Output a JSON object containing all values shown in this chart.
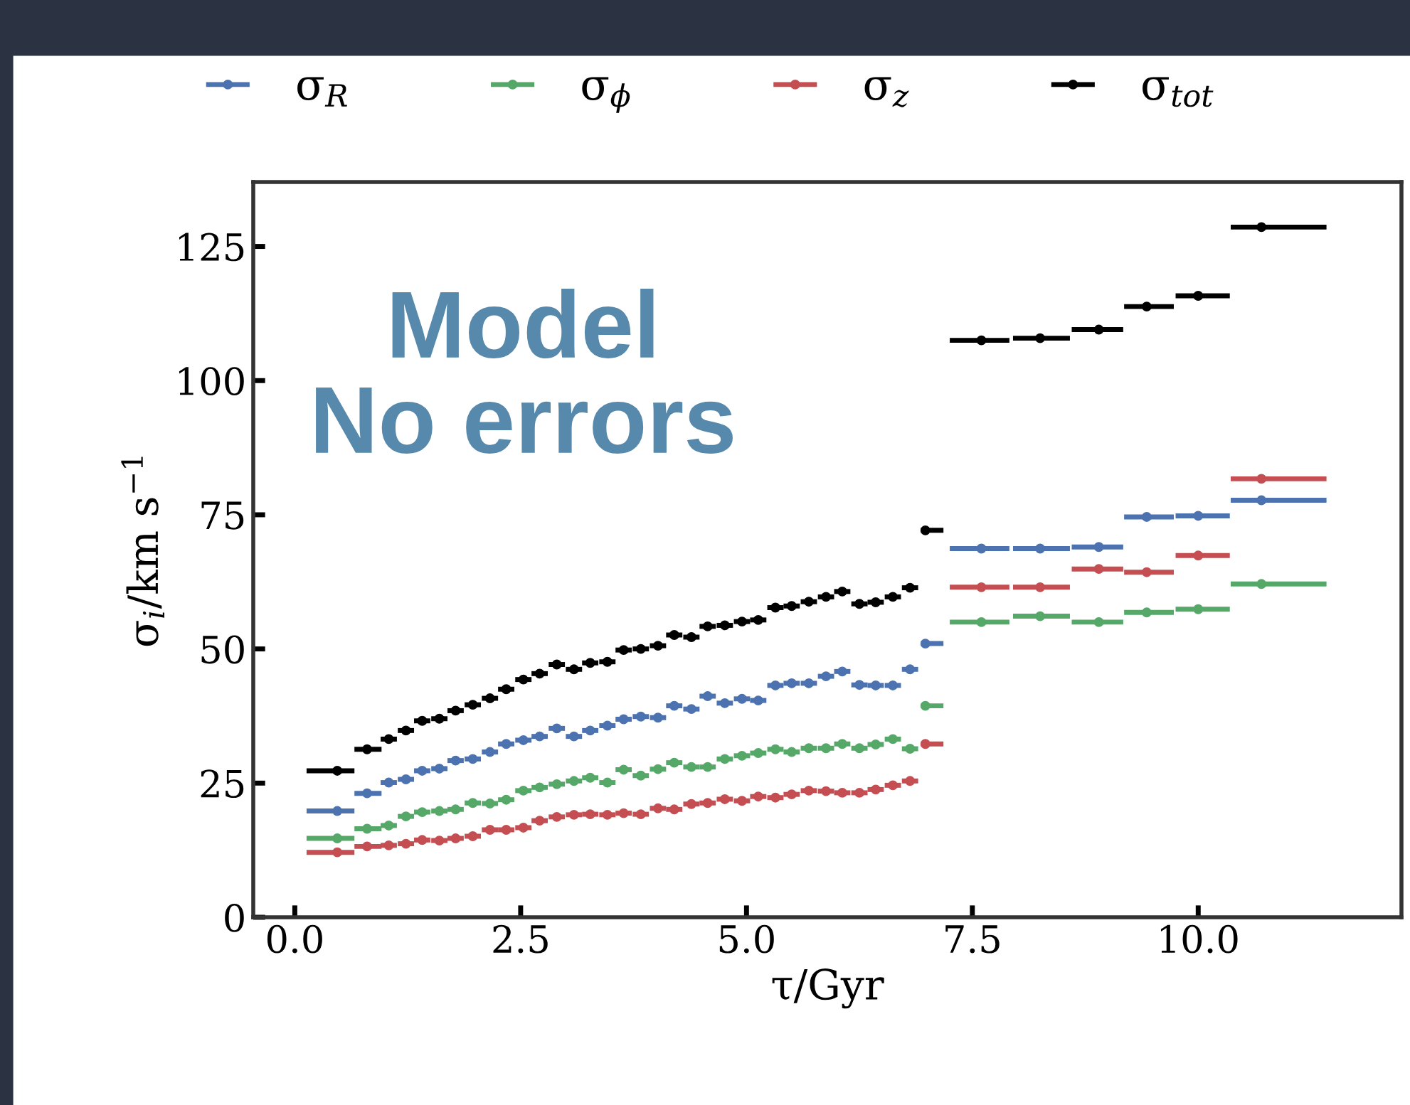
{
  "chart_data": {
    "type": "scatter",
    "xlabel": "τ/Gyr",
    "ylabel": "σ$_{i}$/km s$^{−1}$",
    "x": [
      0.47,
      0.8,
      1.04,
      1.23,
      1.41,
      1.6,
      1.78,
      1.97,
      2.16,
      2.34,
      2.53,
      2.71,
      2.9,
      3.09,
      3.27,
      3.46,
      3.64,
      3.83,
      4.02,
      4.2,
      4.39,
      4.57,
      4.76,
      4.95,
      5.13,
      5.32,
      5.5,
      5.69,
      5.88,
      6.06,
      6.25,
      6.43,
      6.62,
      6.81,
      6.98,
      7.6,
      8.25,
      8.9,
      9.43,
      10.0,
      10.7
    ],
    "series": [
      {
        "name": "σ$_{R}$",
        "color": "#4c72b0",
        "values": [
          19.8,
          23.1,
          25.1,
          25.7,
          27.3,
          27.7,
          29.2,
          29.5,
          30.8,
          32.3,
          33.0,
          33.7,
          35.2,
          33.7,
          34.8,
          35.7,
          36.9,
          37.4,
          37.2,
          39.4,
          38.8,
          41.2,
          39.9,
          40.7,
          40.4,
          43.2,
          43.6,
          43.6,
          44.9,
          45.8,
          43.3,
          43.2,
          43.2,
          46.2,
          51.0,
          68.7,
          68.7,
          69.0,
          74.6,
          74.8,
          77.7
        ],
        "xerrors": [
          [
            0.13,
            0.66
          ],
          [
            0.66,
            0.96
          ],
          [
            0.95,
            1.13
          ],
          [
            1.14,
            1.32
          ],
          [
            1.32,
            1.5
          ],
          [
            1.51,
            1.69
          ],
          [
            1.69,
            1.87
          ],
          [
            1.88,
            2.06
          ],
          [
            2.07,
            2.25
          ],
          [
            2.25,
            2.43
          ],
          [
            2.44,
            2.62
          ],
          [
            2.62,
            2.8
          ],
          [
            2.81,
            2.99
          ],
          [
            3.0,
            3.18
          ],
          [
            3.18,
            3.36
          ],
          [
            3.37,
            3.55
          ],
          [
            3.55,
            3.73
          ],
          [
            3.74,
            3.92
          ],
          [
            3.93,
            4.11
          ],
          [
            4.11,
            4.29
          ],
          [
            4.3,
            4.48
          ],
          [
            4.48,
            4.66
          ],
          [
            4.67,
            4.85
          ],
          [
            4.86,
            5.04
          ],
          [
            5.04,
            5.22
          ],
          [
            5.23,
            5.41
          ],
          [
            5.41,
            5.59
          ],
          [
            5.6,
            5.78
          ],
          [
            5.79,
            5.97
          ],
          [
            5.97,
            6.15
          ],
          [
            6.16,
            6.34
          ],
          [
            6.34,
            6.52
          ],
          [
            6.53,
            6.71
          ],
          [
            6.72,
            6.9
          ],
          [
            6.93,
            7.18
          ],
          [
            7.25,
            7.91
          ],
          [
            7.95,
            8.58
          ],
          [
            8.6,
            9.17
          ],
          [
            9.18,
            9.73
          ],
          [
            9.75,
            10.35
          ],
          [
            10.36,
            11.42
          ]
        ]
      },
      {
        "name": "σ$_{ϕ}$",
        "color": "#55a868",
        "values": [
          14.7,
          16.5,
          17.1,
          18.8,
          19.6,
          19.8,
          20.1,
          21.3,
          21.2,
          21.9,
          23.6,
          24.2,
          24.8,
          25.4,
          26.0,
          25.1,
          27.5,
          26.4,
          27.6,
          28.8,
          28.0,
          28.0,
          29.5,
          30.1,
          30.6,
          31.3,
          30.8,
          31.5,
          31.5,
          32.3,
          31.5,
          32.2,
          33.2,
          31.4,
          39.4,
          55.0,
          56.1,
          55.0,
          56.8,
          57.4,
          62.1
        ],
        "xerrors": [
          [
            0.13,
            0.66
          ],
          [
            0.66,
            0.96
          ],
          [
            0.95,
            1.13
          ],
          [
            1.14,
            1.32
          ],
          [
            1.32,
            1.5
          ],
          [
            1.51,
            1.69
          ],
          [
            1.69,
            1.87
          ],
          [
            1.88,
            2.06
          ],
          [
            2.07,
            2.25
          ],
          [
            2.25,
            2.43
          ],
          [
            2.44,
            2.62
          ],
          [
            2.62,
            2.8
          ],
          [
            2.81,
            2.99
          ],
          [
            3.0,
            3.18
          ],
          [
            3.18,
            3.36
          ],
          [
            3.37,
            3.55
          ],
          [
            3.55,
            3.73
          ],
          [
            3.74,
            3.92
          ],
          [
            3.93,
            4.11
          ],
          [
            4.11,
            4.29
          ],
          [
            4.3,
            4.48
          ],
          [
            4.48,
            4.66
          ],
          [
            4.67,
            4.85
          ],
          [
            4.86,
            5.04
          ],
          [
            5.04,
            5.22
          ],
          [
            5.23,
            5.41
          ],
          [
            5.41,
            5.59
          ],
          [
            5.6,
            5.78
          ],
          [
            5.79,
            5.97
          ],
          [
            5.97,
            6.15
          ],
          [
            6.16,
            6.34
          ],
          [
            6.34,
            6.52
          ],
          [
            6.53,
            6.71
          ],
          [
            6.72,
            6.9
          ],
          [
            6.93,
            7.18
          ],
          [
            7.25,
            7.91
          ],
          [
            7.95,
            8.58
          ],
          [
            8.6,
            9.17
          ],
          [
            9.18,
            9.73
          ],
          [
            9.75,
            10.35
          ],
          [
            10.36,
            11.42
          ]
        ]
      },
      {
        "name": "σ$_{z}$",
        "color": "#c44e52",
        "values": [
          12.1,
          13.2,
          13.4,
          13.7,
          14.4,
          14.3,
          14.7,
          15.1,
          16.3,
          16.3,
          16.7,
          18.0,
          18.7,
          19.1,
          19.2,
          19.1,
          19.4,
          19.2,
          20.3,
          20.1,
          21.1,
          21.3,
          22.0,
          21.7,
          22.5,
          22.3,
          22.9,
          23.6,
          23.5,
          23.2,
          23.2,
          23.8,
          24.6,
          25.4,
          32.3,
          61.5,
          61.5,
          64.9,
          64.3,
          67.4,
          81.7
        ],
        "xerrors": [
          [
            0.13,
            0.66
          ],
          [
            0.66,
            0.96
          ],
          [
            0.95,
            1.13
          ],
          [
            1.14,
            1.32
          ],
          [
            1.32,
            1.5
          ],
          [
            1.51,
            1.69
          ],
          [
            1.69,
            1.87
          ],
          [
            1.88,
            2.06
          ],
          [
            2.07,
            2.25
          ],
          [
            2.25,
            2.43
          ],
          [
            2.44,
            2.62
          ],
          [
            2.62,
            2.8
          ],
          [
            2.81,
            2.99
          ],
          [
            3.0,
            3.18
          ],
          [
            3.18,
            3.36
          ],
          [
            3.37,
            3.55
          ],
          [
            3.55,
            3.73
          ],
          [
            3.74,
            3.92
          ],
          [
            3.93,
            4.11
          ],
          [
            4.11,
            4.29
          ],
          [
            4.3,
            4.48
          ],
          [
            4.48,
            4.66
          ],
          [
            4.67,
            4.85
          ],
          [
            4.86,
            5.04
          ],
          [
            5.04,
            5.22
          ],
          [
            5.23,
            5.41
          ],
          [
            5.41,
            5.59
          ],
          [
            5.6,
            5.78
          ],
          [
            5.79,
            5.97
          ],
          [
            5.97,
            6.15
          ],
          [
            6.16,
            6.34
          ],
          [
            6.34,
            6.52
          ],
          [
            6.53,
            6.71
          ],
          [
            6.72,
            6.9
          ],
          [
            6.93,
            7.18
          ],
          [
            7.25,
            7.91
          ],
          [
            7.95,
            8.58
          ],
          [
            8.6,
            9.17
          ],
          [
            9.18,
            9.73
          ],
          [
            9.75,
            10.35
          ],
          [
            10.36,
            11.42
          ]
        ]
      },
      {
        "name": "σ$_{tot}$",
        "color": "#000000",
        "values": [
          27.3,
          31.3,
          33.2,
          34.8,
          36.6,
          37.0,
          38.5,
          39.6,
          40.8,
          42.5,
          44.3,
          45.4,
          47.1,
          46.2,
          47.4,
          47.6,
          49.8,
          50.0,
          50.6,
          52.6,
          52.2,
          54.2,
          54.4,
          55.1,
          55.4,
          57.7,
          58.0,
          58.8,
          59.7,
          60.7,
          58.4,
          58.7,
          59.7,
          61.4,
          72.1,
          107.5,
          107.9,
          109.5,
          113.8,
          115.8,
          128.6
        ],
        "xerrors": [
          [
            0.13,
            0.66
          ],
          [
            0.66,
            0.96
          ],
          [
            0.95,
            1.13
          ],
          [
            1.14,
            1.32
          ],
          [
            1.32,
            1.5
          ],
          [
            1.51,
            1.69
          ],
          [
            1.69,
            1.87
          ],
          [
            1.88,
            2.06
          ],
          [
            2.07,
            2.25
          ],
          [
            2.25,
            2.43
          ],
          [
            2.44,
            2.62
          ],
          [
            2.62,
            2.8
          ],
          [
            2.81,
            2.99
          ],
          [
            3.0,
            3.18
          ],
          [
            3.18,
            3.36
          ],
          [
            3.37,
            3.55
          ],
          [
            3.55,
            3.73
          ],
          [
            3.74,
            3.92
          ],
          [
            3.93,
            4.11
          ],
          [
            4.11,
            4.29
          ],
          [
            4.3,
            4.48
          ],
          [
            4.48,
            4.66
          ],
          [
            4.67,
            4.85
          ],
          [
            4.86,
            5.04
          ],
          [
            5.04,
            5.22
          ],
          [
            5.23,
            5.41
          ],
          [
            5.41,
            5.59
          ],
          [
            5.6,
            5.78
          ],
          [
            5.79,
            5.97
          ],
          [
            5.97,
            6.15
          ],
          [
            6.16,
            6.34
          ],
          [
            6.34,
            6.52
          ],
          [
            6.53,
            6.71
          ],
          [
            6.72,
            6.9
          ],
          [
            6.93,
            7.18
          ],
          [
            7.25,
            7.91
          ],
          [
            7.95,
            8.58
          ],
          [
            8.6,
            9.17
          ],
          [
            9.18,
            9.73
          ],
          [
            9.75,
            10.35
          ],
          [
            10.36,
            11.42
          ]
        ]
      }
    ],
    "xlim": [
      -0.46,
      12.25
    ],
    "ylim": [
      0,
      137
    ],
    "xticks": [
      {
        "value": 0,
        "label": "0.0"
      },
      {
        "value": 2.5,
        "label": "2.5"
      },
      {
        "value": 5,
        "label": "5.0"
      },
      {
        "value": 7.5,
        "label": "7.5"
      },
      {
        "value": 10,
        "label": "10.0"
      }
    ],
    "yticks": [
      0,
      25,
      50,
      75,
      100,
      125
    ],
    "annotations": [
      "Model\nNo errors"
    ],
    "legend": "top",
    "marker": "circle",
    "grid": false
  }
}
